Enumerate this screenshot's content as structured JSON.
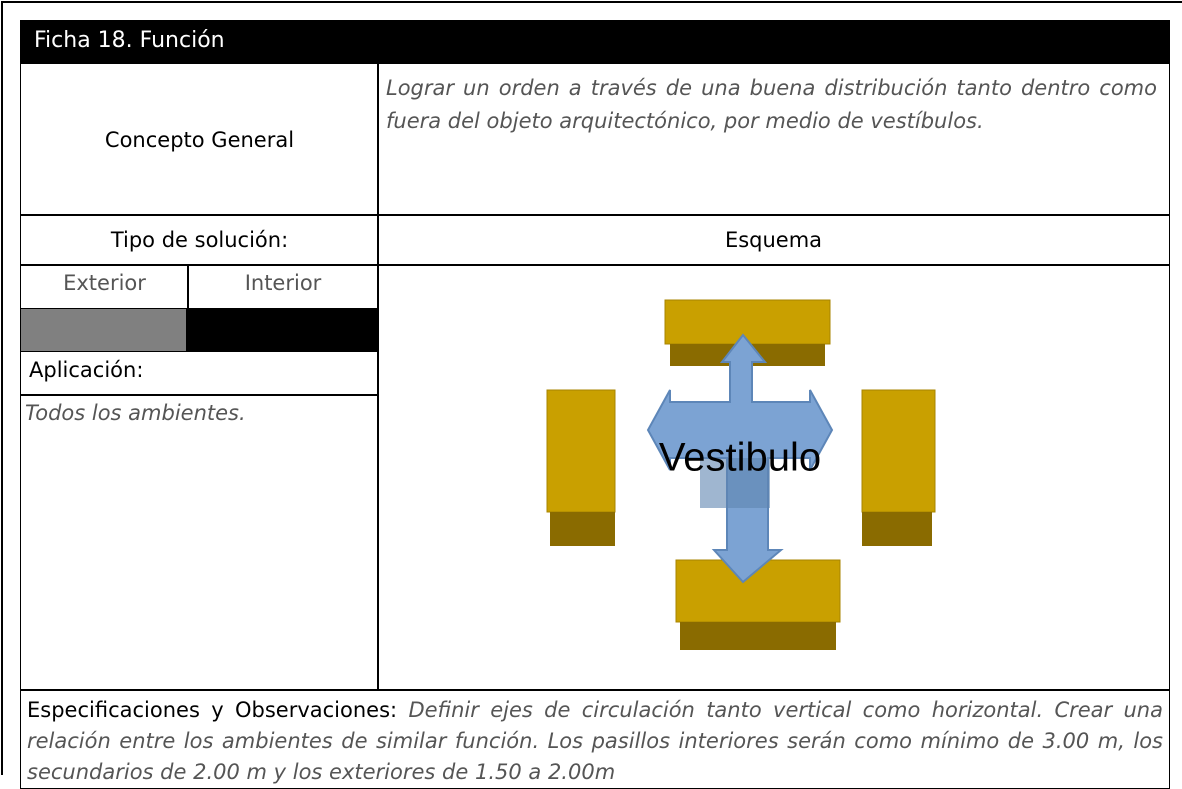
{
  "header": {
    "title": "Ficha 18. Función"
  },
  "concept": {
    "label": "Concepto General",
    "text": "Lograr un orden a través de una buena distribución tanto dentro como fuera del objeto arquitectónico, por medio de vestíbulos."
  },
  "solution": {
    "label": "Tipo de solución:",
    "options": [
      "Exterior",
      "Interior"
    ]
  },
  "schema": {
    "label": "Esquema"
  },
  "application": {
    "label": "Aplicación:",
    "text": "Todos los ambientes."
  },
  "diagram": {
    "center_label": "Vestibulo"
  },
  "specs": {
    "label": "Especificaciones y Observaciones:",
    "text": "Definir ejes de circulación tanto vertical como horizontal. Crear una relación entre los ambientes de similar función. Los pasillos interiores serán como mínimo de 3.00 m, los secundarios de 2.00 m y los exteriores de 1.50 a 2.00m"
  }
}
